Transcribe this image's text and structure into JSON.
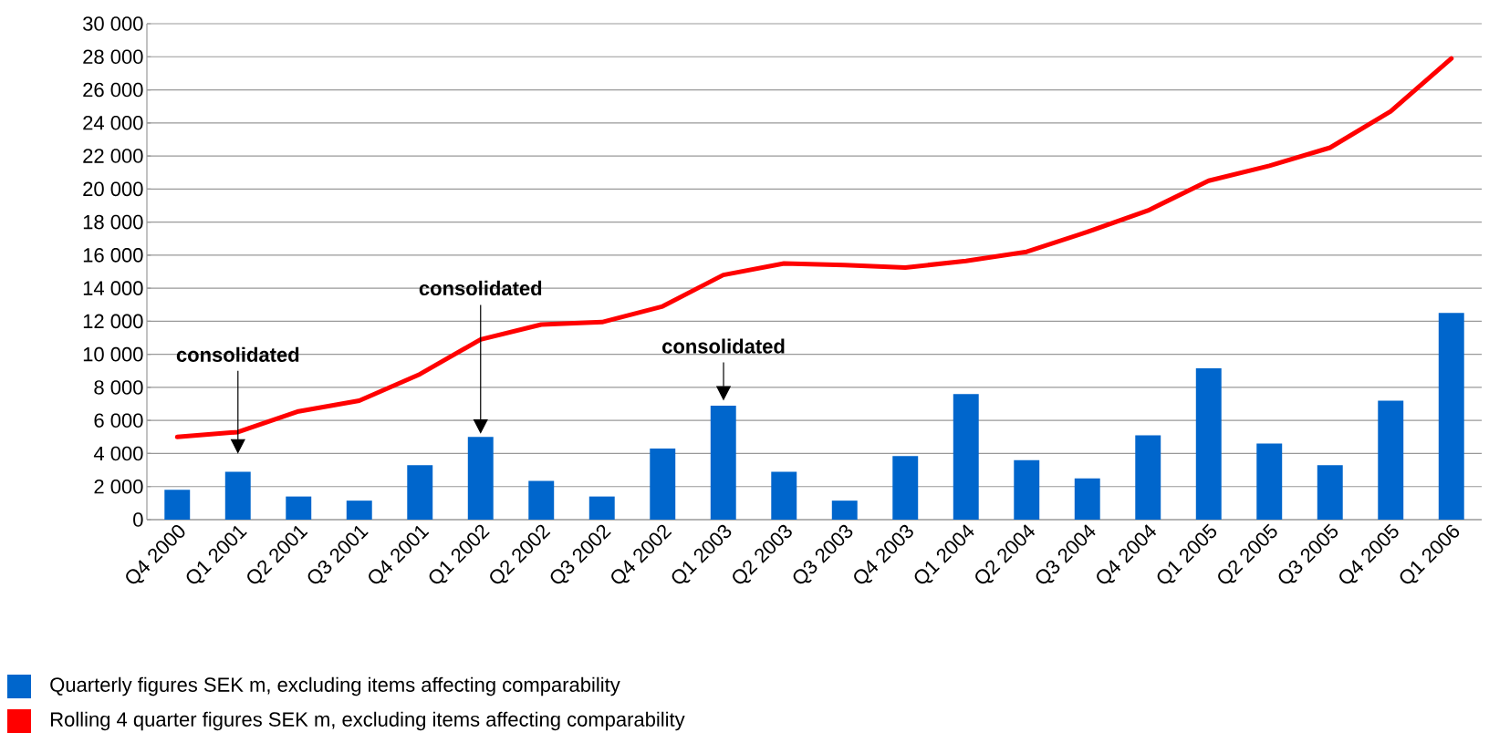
{
  "chart_data": {
    "type": "bar",
    "categories": [
      "Q4 2000",
      "Q1 2001",
      "Q2 2001",
      "Q3 2001",
      "Q4 2001",
      "Q1 2002",
      "Q2 2002",
      "Q3 2002",
      "Q4 2002",
      "Q1 2003",
      "Q2 2003",
      "Q3 2003",
      "Q4 2003",
      "Q1 2004",
      "Q2 2004",
      "Q3 2004",
      "Q4 2004",
      "Q1 2005",
      "Q2 2005",
      "Q3 2005",
      "Q4 2005",
      "Q1 2006"
    ],
    "series": [
      {
        "name": "Quarterly figures SEK m, excluding items affecting comparability",
        "color": "#0066cc",
        "values": [
          1800,
          2900,
          1400,
          1150,
          3300,
          5000,
          2350,
          1400,
          4300,
          6900,
          2900,
          1150,
          3850,
          7600,
          3600,
          2500,
          5100,
          9150,
          4600,
          3300,
          7200,
          12500
        ]
      },
      {
        "name": "Rolling 4 quarter figures SEK m, excluding items affecting comparability",
        "type": "line",
        "color": "#ff0000",
        "values": [
          5000,
          5300,
          6550,
          7200,
          8800,
          10900,
          11800,
          11950,
          12900,
          14800,
          15500,
          15400,
          15250,
          15650,
          16200,
          17400,
          18700,
          20500,
          21400,
          22500,
          24700,
          27900
        ]
      }
    ],
    "ylim": [
      0,
      30000
    ],
    "yticks": [
      {
        "value": 0,
        "label": "0"
      },
      {
        "value": 2000,
        "label": "2 000"
      },
      {
        "value": 4000,
        "label": "4 000"
      },
      {
        "value": 6000,
        "label": "6 000"
      },
      {
        "value": 8000,
        "label": "8 000"
      },
      {
        "value": 10000,
        "label": "10 000"
      },
      {
        "value": 12000,
        "label": "12 000"
      },
      {
        "value": 14000,
        "label": "14 000"
      },
      {
        "value": 16000,
        "label": "16 000"
      },
      {
        "value": 18000,
        "label": "18 000"
      },
      {
        "value": 20000,
        "label": "20 000"
      },
      {
        "value": 22000,
        "label": "22 000"
      },
      {
        "value": 24000,
        "label": "24 000"
      },
      {
        "value": 26000,
        "label": "26 000"
      },
      {
        "value": 28000,
        "label": "28 000"
      },
      {
        "value": 30000,
        "label": "30 000"
      }
    ],
    "annotations": [
      "consolidated",
      "consolidated",
      "consolidated"
    ],
    "grid": "y",
    "legend": "bottom left"
  }
}
